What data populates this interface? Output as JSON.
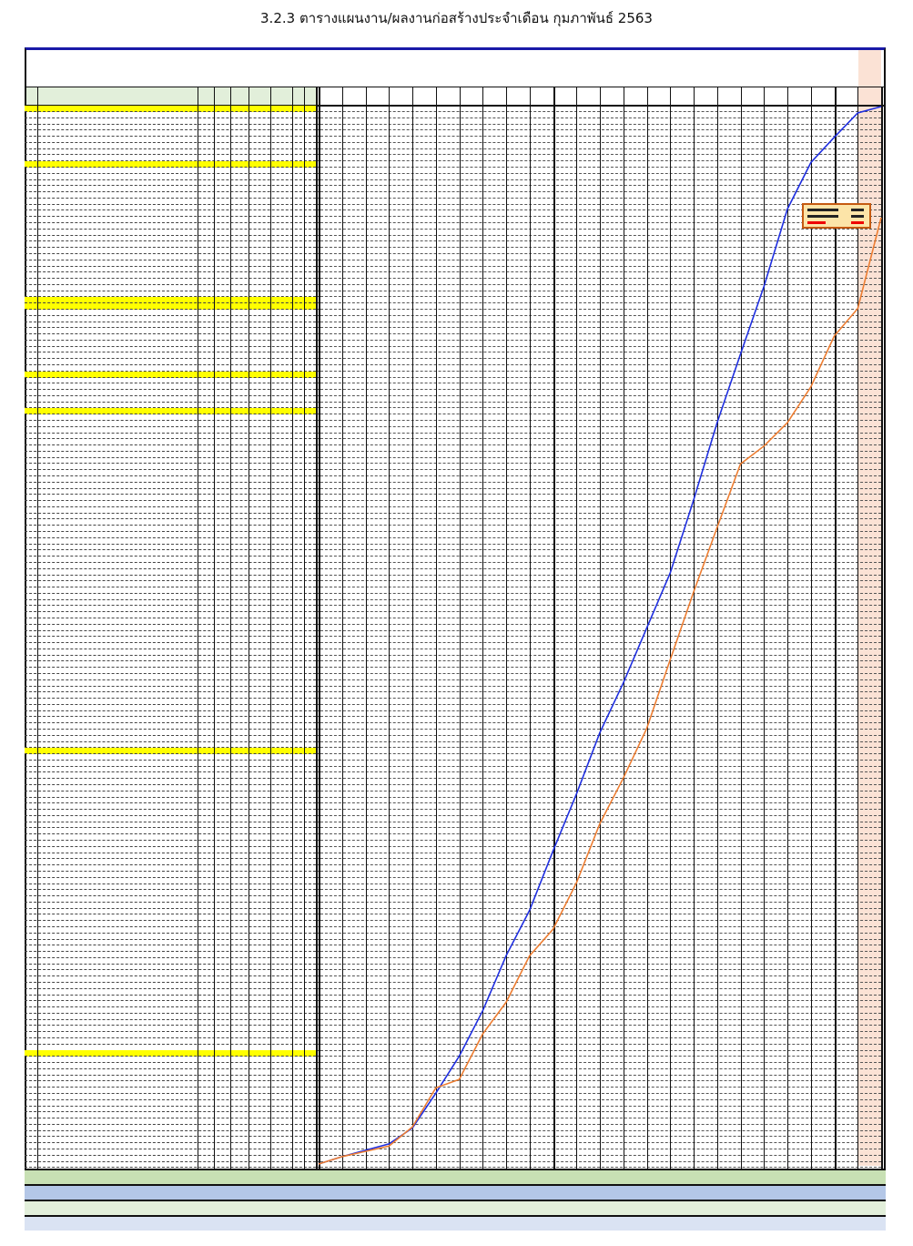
{
  "title": "3.2.3 ตารางแผนงาน/ผลงานก่อสร้างประจำเดือน กุมภาพันธ์ 2563",
  "colors": {
    "plan_line": "#1f2fe0",
    "actual_line": "#ed7d31",
    "section_row": "#ffff00",
    "header_fill": "#e2efda",
    "current_month_fill": "#fbe2d5",
    "legend_fill": "#fce4a8",
    "legend_border": "#c55a11",
    "footer_fills": [
      "#c8e0b4",
      "#b4c7e7",
      "#e2efda",
      "#dae3f3"
    ]
  },
  "chart_data": {
    "type": "line",
    "title": "",
    "xlabel": "",
    "ylabel": "",
    "x": [
      0,
      1,
      2,
      3,
      4,
      5,
      6,
      7,
      8,
      9,
      10,
      11,
      12,
      13,
      14,
      15,
      16,
      17,
      18,
      19,
      20,
      21,
      22,
      23,
      24
    ],
    "ylim": [
      0,
      100
    ],
    "series": [
      {
        "color": "#1f2fe0",
        "values": [
          0,
          0.7,
          1.3,
          1.9,
          3.4,
          6.7,
          10.2,
          14.5,
          19.7,
          24.0,
          29.6,
          35.0,
          40.8,
          45.5,
          50.7,
          55.9,
          62.8,
          70.1,
          76.6,
          83.0,
          90.3,
          94.7,
          97.1,
          99.4,
          100
        ]
      },
      {
        "color": "#ed7d31",
        "values": [
          0,
          0.7,
          1.2,
          1.7,
          3.5,
          7.2,
          8.0,
          12.3,
          15.3,
          19.7,
          22.2,
          26.6,
          32.2,
          36.5,
          41.2,
          47.7,
          54.1,
          60.2,
          66.2,
          67.9,
          70.1,
          73.5,
          78.3,
          80.9,
          89.5
        ]
      }
    ]
  }
}
